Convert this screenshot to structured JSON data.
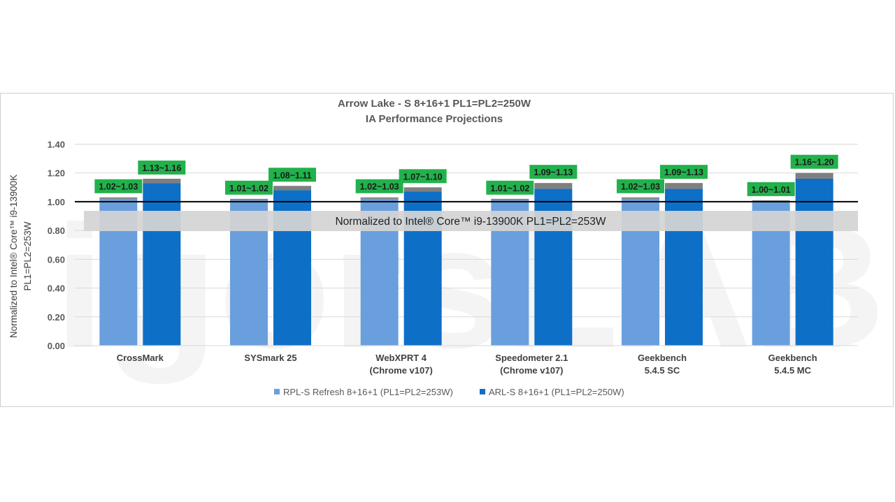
{
  "watermark": "igorsLAB",
  "chart_data": {
    "type": "bar",
    "title": "Arrow Lake - S 8+16+1 PL1=PL2=250W",
    "subtitle": "IA Performance Projections",
    "ylabel": [
      "Normalized to Intel® Core™ i9-13900K",
      "PL1=PL2=253W"
    ],
    "ylim": [
      0,
      1.4
    ],
    "yticks": [
      "0.00",
      "0.20",
      "0.40",
      "0.60",
      "0.80",
      "1.00",
      "1.20",
      "1.40"
    ],
    "grid": true,
    "reference_line": 1.0,
    "banner": "Normalized to Intel® Core™ i9-13900K PL1=PL2=253W",
    "legend_position": "bottom",
    "categories": [
      [
        "CrossMark"
      ],
      [
        "SYSmark 25"
      ],
      [
        "WebXPRT 4",
        "(Chrome v107)"
      ],
      [
        "Speedometer 2.1",
        "(Chrome v107)"
      ],
      [
        "Geekbench",
        "5.4.5 SC"
      ],
      [
        "Geekbench",
        "5.4.5 MC"
      ]
    ],
    "series": [
      {
        "name": "RPL-S Refresh 8+16+1 (PL1=PL2=253W)",
        "color": "#6a9fdd",
        "low": [
          1.02,
          1.01,
          1.02,
          1.01,
          1.02,
          1.0
        ],
        "high": [
          1.03,
          1.02,
          1.03,
          1.02,
          1.03,
          1.01
        ],
        "labels": [
          "1.02~1.03",
          "1.01~1.02",
          "1.02~1.03",
          "1.01~1.02",
          "1.02~1.03",
          "1.00~1.01"
        ]
      },
      {
        "name": "ARL-S 8+16+1 (PL1=PL2=250W)",
        "color": "#0e6fc7",
        "low": [
          1.13,
          1.08,
          1.07,
          1.09,
          1.09,
          1.16
        ],
        "high": [
          1.16,
          1.11,
          1.1,
          1.13,
          1.13,
          1.2
        ],
        "labels": [
          "1.13~1.16",
          "1.08~1.11",
          "1.07~1.10",
          "1.09~1.13",
          "1.09~1.13",
          "1.16~1.20"
        ]
      }
    ],
    "range_color": "#7f7f7f",
    "label_bg": "#22b14c"
  }
}
